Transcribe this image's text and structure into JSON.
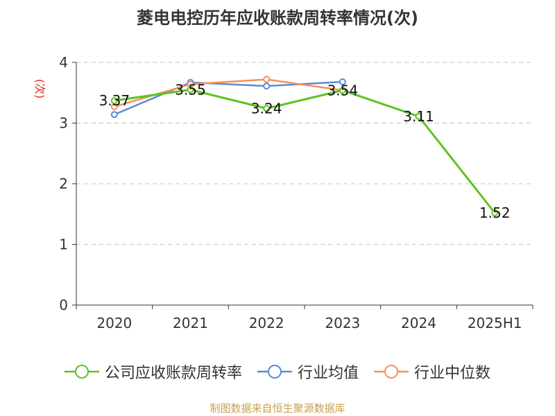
{
  "chart_data": {
    "type": "line",
    "title": "菱电电控历年应收账款周转率情况(次)",
    "ylabel": "(次)",
    "categories": [
      "2020",
      "2021",
      "2022",
      "2023",
      "2024",
      "2025H1"
    ],
    "ylim": [
      0,
      4
    ],
    "yticks": [
      0,
      1,
      2,
      3,
      4
    ],
    "grid": true,
    "legend_position": "bottom",
    "series": [
      {
        "name": "公司应收账款周转率",
        "color": "#5cc31f",
        "values": [
          3.37,
          3.55,
          3.24,
          3.54,
          3.11,
          1.52
        ],
        "labels": [
          "3.37",
          "3.55",
          "3.24",
          "3.54",
          "3.11",
          "1.52"
        ]
      },
      {
        "name": "行业均值",
        "color": "#5b8ad6",
        "values": [
          3.14,
          3.67,
          3.61,
          3.68,
          null,
          null
        ]
      },
      {
        "name": "行业中位数",
        "color": "#f5905a",
        "values": [
          3.27,
          3.64,
          3.72,
          3.54,
          null,
          null
        ]
      }
    ]
  },
  "source": "制图数据来自恒生聚源数据库"
}
